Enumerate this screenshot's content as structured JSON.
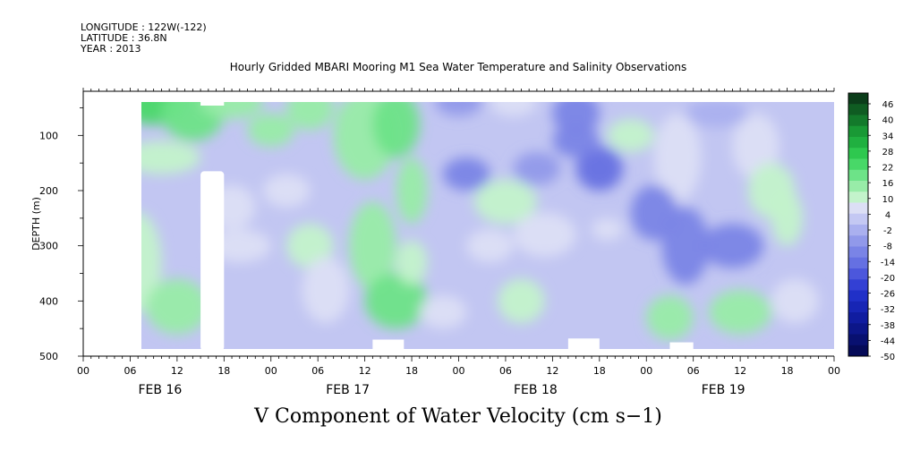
{
  "meta": {
    "longitude": "LONGITUDE : 122W(-122)",
    "latitude": "LATITUDE : 36.8N",
    "year": "YEAR : 2013"
  },
  "plot_title": "Hourly Gridded MBARI Mooring M1 Sea Water Temperature and Salinity Observations",
  "colorbar": {
    "labels": [
      "46",
      "40",
      "34",
      "28",
      "22",
      "16",
      "10",
      "4",
      "-2",
      "-8",
      "-14",
      "-20",
      "-26",
      "-32",
      "-38",
      "-44",
      "-50"
    ],
    "colors": [
      "#0b3d1a",
      "#0f5c22",
      "#137a2b",
      "#199935",
      "#20b040",
      "#2ec84f",
      "#48d868",
      "#6de388",
      "#98eca8",
      "#c3f3cb",
      "#dcdff5",
      "#c4c8f3",
      "#aab0ef",
      "#9199ea",
      "#7a84e6",
      "#6570e2",
      "#4c57dc",
      "#3340d4",
      "#2030c8",
      "#1725b5",
      "#101ca0",
      "#0c1689",
      "#081070",
      "#050a58"
    ]
  },
  "chart_data": {
    "type": "heatmap",
    "title": "V Component of Water Velocity (cm s−1)",
    "xlabel": "",
    "ylabel": "DEPTH (m)",
    "x_ticks": [
      "00",
      "06",
      "12",
      "18",
      "00",
      "06",
      "12",
      "18",
      "00",
      "06",
      "12",
      "18",
      "00",
      "06",
      "12",
      "18",
      "00"
    ],
    "x_day_labels": [
      "FEB 16",
      "FEB 17",
      "FEB 18",
      "FEB 19"
    ],
    "y_ticks": [
      100,
      200,
      300,
      400,
      500
    ],
    "ylim": [
      500,
      0
    ],
    "xlim": [
      "FEB 16 00:00",
      "FEB 20 00:00"
    ],
    "data_start": "FEB 16 06:00",
    "color_range": [
      -50,
      46
    ],
    "missing_data": "FEB 16 15:00-18:00, depth 165-490 m",
    "value_summary": [
      {
        "time": "FEB 16 06:00-12:00",
        "depth": "20-150 m",
        "v": 20
      },
      {
        "time": "FEB 16 12:00-00:00",
        "depth": "20-500 m",
        "v": 4
      },
      {
        "time": "FEB 17 06:00-12:00",
        "depth": "20-500 m",
        "v": 14
      },
      {
        "time": "FEB 17 12:00-FEB 18 00:00",
        "depth": "20-500 m",
        "v": -6
      },
      {
        "time": "FEB 18 00:00-12:00",
        "depth": "20-500 m",
        "v": -10
      },
      {
        "time": "FEB 18 12:00-FEB 19 00:00",
        "depth": "20-500 m",
        "v": -8
      },
      {
        "time": "FEB 19 00:00-06:00",
        "depth": "100-500 m",
        "v": 8
      },
      {
        "time": "FEB 19 06:00-FEB 20 00:00",
        "depth": "20-500 m",
        "v": -2
      }
    ]
  }
}
